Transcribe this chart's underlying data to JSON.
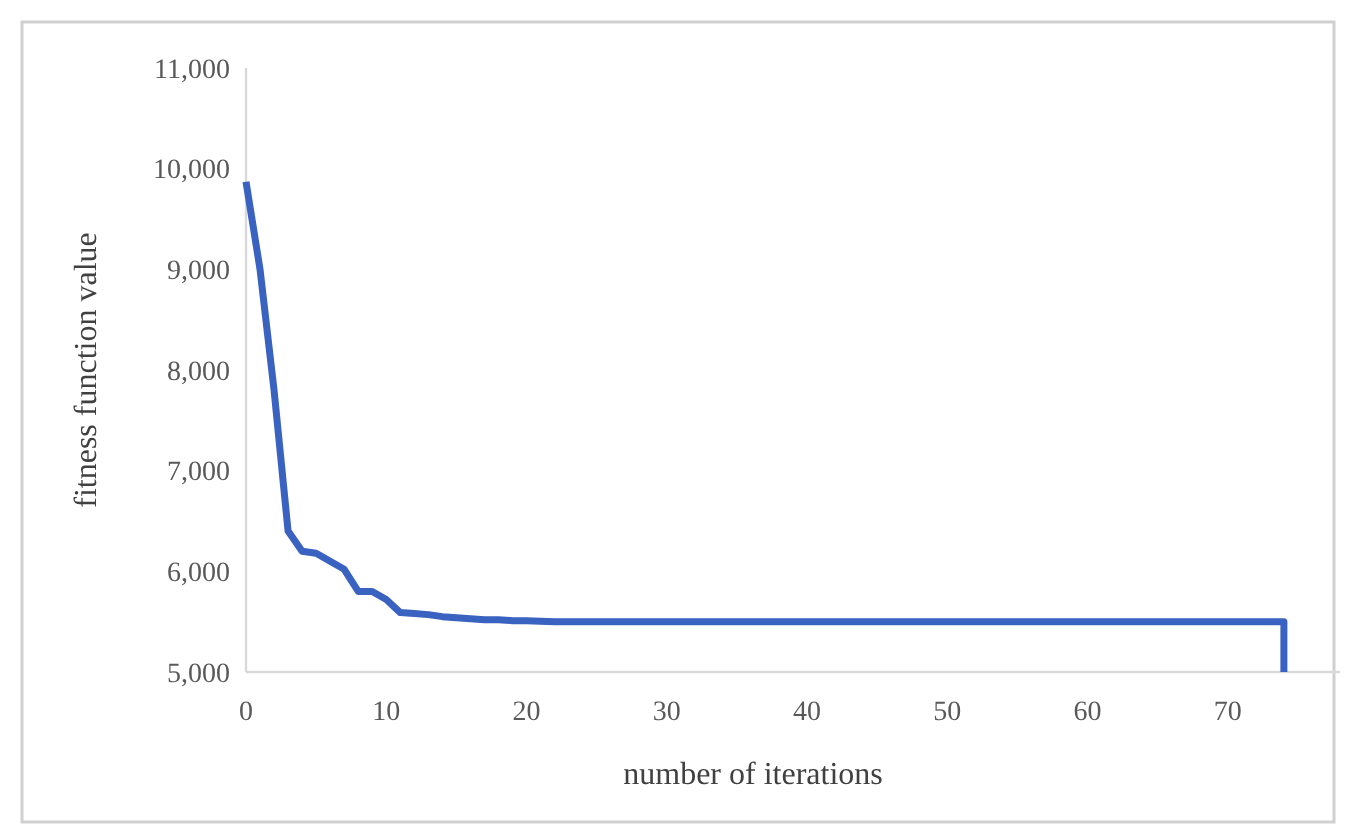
{
  "chart_data": {
    "type": "line",
    "xlabel": "number of iterations",
    "ylabel": "fitness function value",
    "x": [
      0,
      1,
      2,
      3,
      4,
      5,
      6,
      7,
      8,
      9,
      10,
      11,
      12,
      13,
      14,
      15,
      16,
      17,
      18,
      19,
      20,
      22,
      30,
      40,
      50,
      60,
      70,
      74,
      74
    ],
    "series": [
      {
        "color": "#3a62c0",
        "values": [
          9870,
          9000,
          7800,
          6400,
          6200,
          6180,
          6100,
          6020,
          5800,
          5800,
          5720,
          5590,
          5580,
          5570,
          5550,
          5540,
          5530,
          5520,
          5520,
          5510,
          5510,
          5500,
          5500,
          5500,
          5500,
          5500,
          5500,
          5500,
          5000
        ]
      }
    ],
    "xlim": [
      0,
      78
    ],
    "xticks": [
      0,
      10,
      20,
      30,
      40,
      50,
      60,
      70
    ],
    "ylim": [
      5000,
      11000
    ],
    "yticks": [
      {
        "value": 5000,
        "label": "5,000"
      },
      {
        "value": 6000,
        "label": "6,000"
      },
      {
        "value": 7000,
        "label": "7,000"
      },
      {
        "value": 8000,
        "label": "8,000"
      },
      {
        "value": 9000,
        "label": "9,000"
      },
      {
        "value": 10000,
        "label": "10,000"
      },
      {
        "value": 11000,
        "label": "11,000"
      }
    ],
    "grid": false,
    "marker": "none",
    "line_style": "solid"
  }
}
